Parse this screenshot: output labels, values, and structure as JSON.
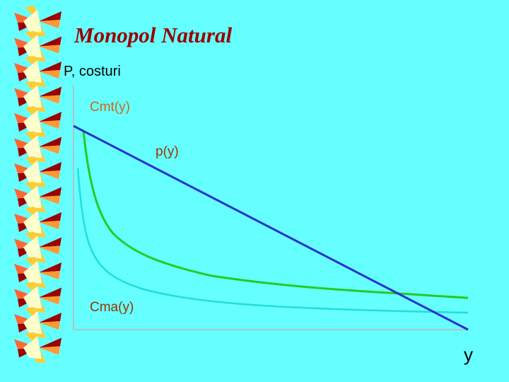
{
  "title": "Monopol Natural",
  "diagram": {
    "y_axis_label": "P, costuri",
    "x_axis_label": "y",
    "curves": [
      {
        "label": "Cmt(y)"
      },
      {
        "label": "p(y)"
      },
      {
        "label": "Cma(y)"
      }
    ]
  }
}
